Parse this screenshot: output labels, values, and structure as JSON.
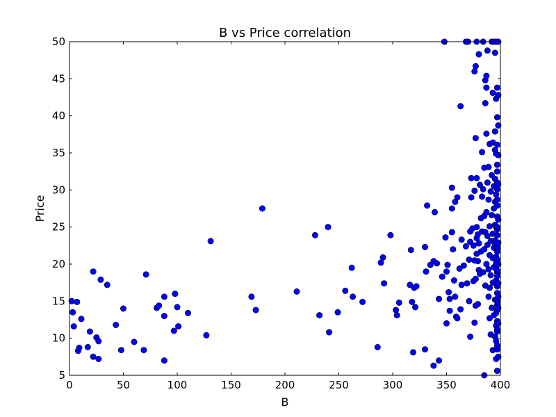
{
  "chart_data": {
    "type": "scatter",
    "title": "B vs Price correlation",
    "xlabel": "B",
    "ylabel": "Price",
    "xlim": [
      0,
      400
    ],
    "ylim": [
      5,
      50
    ],
    "xticks": [
      0,
      50,
      100,
      150,
      200,
      250,
      300,
      350,
      400
    ],
    "yticks": [
      5,
      10,
      15,
      20,
      25,
      30,
      35,
      40,
      45,
      50
    ],
    "grid": false,
    "marker_color": "#0000ff",
    "marker_edge": "#000000",
    "points": [
      [
        2,
        15.0
      ],
      [
        3,
        13.5
      ],
      [
        4,
        11.6
      ],
      [
        7,
        14.9
      ],
      [
        8,
        8.3
      ],
      [
        9,
        8.7
      ],
      [
        11,
        12.6
      ],
      [
        17,
        8.8
      ],
      [
        19,
        10.9
      ],
      [
        22,
        7.5
      ],
      [
        22,
        19.0
      ],
      [
        25,
        10.1
      ],
      [
        27,
        9.6
      ],
      [
        27,
        7.2
      ],
      [
        29,
        17.9
      ],
      [
        35,
        17.2
      ],
      [
        43,
        11.8
      ],
      [
        48,
        8.4
      ],
      [
        50,
        14.0
      ],
      [
        60,
        9.5
      ],
      [
        69,
        8.4
      ],
      [
        71,
        18.6
      ],
      [
        81,
        14.1
      ],
      [
        83,
        14.4
      ],
      [
        88,
        15.6
      ],
      [
        88,
        13.0
      ],
      [
        88,
        7.0
      ],
      [
        97,
        11.0
      ],
      [
        98,
        16.0
      ],
      [
        100,
        14.2
      ],
      [
        101,
        11.6
      ],
      [
        110,
        13.4
      ],
      [
        127,
        10.4
      ],
      [
        131,
        23.1
      ],
      [
        169,
        15.6
      ],
      [
        173,
        13.8
      ],
      [
        179,
        27.5
      ],
      [
        211,
        16.3
      ],
      [
        228,
        23.9
      ],
      [
        232,
        13.1
      ],
      [
        240,
        25.0
      ],
      [
        241,
        10.8
      ],
      [
        249,
        13.5
      ],
      [
        256,
        16.4
      ],
      [
        262,
        19.5
      ],
      [
        263,
        15.6
      ],
      [
        272,
        14.9
      ],
      [
        286,
        8.8
      ],
      [
        289,
        20.2
      ],
      [
        291,
        20.9
      ],
      [
        292,
        17.4
      ],
      [
        298,
        23.9
      ],
      [
        303,
        13.8
      ],
      [
        304,
        13.1
      ],
      [
        306,
        14.8
      ],
      [
        316,
        17.2
      ],
      [
        317,
        21.9
      ],
      [
        318,
        14.9
      ],
      [
        319,
        8.1
      ],
      [
        320,
        16.8
      ],
      [
        321,
        14.2
      ],
      [
        322,
        17.0
      ],
      [
        330,
        22.3
      ],
      [
        330,
        8.5
      ],
      [
        331,
        19.0
      ],
      [
        332,
        27.9
      ],
      [
        335,
        19.9
      ],
      [
        338,
        20.4
      ],
      [
        338,
        6.3
      ],
      [
        339,
        27.0
      ],
      [
        341,
        20.1
      ],
      [
        343,
        15.3
      ],
      [
        343,
        7.0
      ],
      [
        346,
        18.3
      ],
      [
        348,
        50.0
      ],
      [
        349,
        23.6
      ],
      [
        350,
        19.0
      ],
      [
        350,
        12.0
      ],
      [
        351,
        19.9
      ],
      [
        352,
        16.2
      ],
      [
        353,
        15.3
      ],
      [
        353,
        13.7
      ],
      [
        355,
        24.3
      ],
      [
        355,
        30.3
      ],
      [
        355,
        27.5
      ],
      [
        356,
        22.0
      ],
      [
        357,
        17.8
      ],
      [
        358,
        15.6
      ],
      [
        358,
        28.4
      ],
      [
        359,
        12.9
      ],
      [
        360,
        29.0
      ],
      [
        360,
        12.7
      ],
      [
        362,
        19.4
      ],
      [
        363,
        13.9
      ],
      [
        363,
        41.3
      ],
      [
        364,
        17.2
      ],
      [
        364,
        23.3
      ],
      [
        366,
        19.8
      ],
      [
        368,
        22.4
      ],
      [
        368,
        50.0
      ],
      [
        369,
        17.4
      ],
      [
        370,
        50.0
      ],
      [
        371,
        20.6
      ],
      [
        371,
        15.0
      ],
      [
        372,
        24.4
      ],
      [
        372,
        23.0
      ],
      [
        372,
        10.2
      ],
      [
        373,
        31.6
      ],
      [
        373,
        29.0
      ],
      [
        374,
        24.8
      ],
      [
        375,
        22.5
      ],
      [
        375,
        17.7
      ],
      [
        376,
        20.5
      ],
      [
        376,
        29.9
      ],
      [
        376,
        46.0
      ],
      [
        376,
        12.1
      ],
      [
        377,
        14.4
      ],
      [
        377,
        18.0
      ],
      [
        377,
        46.7
      ],
      [
        377,
        37.0
      ],
      [
        378,
        23.5
      ],
      [
        378,
        25.0
      ],
      [
        378,
        21.4
      ],
      [
        378,
        50.0
      ],
      [
        378,
        31.6
      ],
      [
        379,
        20.4
      ],
      [
        379,
        24.0
      ],
      [
        379,
        14.6
      ],
      [
        380,
        48.3
      ],
      [
        380,
        19.2
      ],
      [
        380,
        22.8
      ],
      [
        381,
        18.7
      ],
      [
        381,
        30.7
      ],
      [
        382,
        26.2
      ],
      [
        382,
        21.7
      ],
      [
        383,
        29.1
      ],
      [
        383,
        24.4
      ],
      [
        383,
        35.1
      ],
      [
        384,
        18.9
      ],
      [
        384,
        30.1
      ],
      [
        384,
        50.0
      ],
      [
        385,
        22.0
      ],
      [
        385,
        26.5
      ],
      [
        385,
        33.0
      ],
      [
        385,
        5.0
      ],
      [
        386,
        44.8
      ],
      [
        386,
        17.1
      ],
      [
        386,
        41.7
      ],
      [
        386,
        24.3
      ],
      [
        387,
        20.0
      ],
      [
        387,
        27.0
      ],
      [
        387,
        43.8
      ],
      [
        387,
        37.6
      ],
      [
        387,
        45.4
      ],
      [
        388,
        31.0
      ],
      [
        388,
        22.6
      ],
      [
        388,
        48.8
      ],
      [
        388,
        23.8
      ],
      [
        389,
        15.6
      ],
      [
        389,
        19.3
      ],
      [
        389,
        33.1
      ],
      [
        389,
        28.7
      ],
      [
        390,
        36.2
      ],
      [
        390,
        21.2
      ],
      [
        390,
        16.8
      ],
      [
        390,
        25.1
      ],
      [
        390,
        12.7
      ],
      [
        391,
        29.8
      ],
      [
        391,
        18.5
      ],
      [
        391,
        10.5
      ],
      [
        391,
        23.1
      ],
      [
        392,
        50.0
      ],
      [
        392,
        32.0
      ],
      [
        392,
        14.1
      ],
      [
        392,
        26.6
      ],
      [
        393,
        36.4
      ],
      [
        393,
        20.8
      ],
      [
        393,
        24.1
      ],
      [
        393,
        43.1
      ],
      [
        393,
        17.5
      ],
      [
        393,
        8.4
      ],
      [
        394,
        22.2
      ],
      [
        394,
        50.0
      ],
      [
        394,
        27.5
      ],
      [
        394,
        30.5
      ],
      [
        394,
        19.6
      ],
      [
        394,
        13.1
      ],
      [
        395,
        35.4
      ],
      [
        395,
        23.2
      ],
      [
        395,
        10.2
      ],
      [
        395,
        15.2
      ],
      [
        395,
        48.5
      ],
      [
        395,
        28.4
      ],
      [
        395,
        25.3
      ],
      [
        395,
        31.5
      ],
      [
        395,
        22.8
      ],
      [
        395,
        37.9
      ],
      [
        396,
        29.4
      ],
      [
        396,
        17.8
      ],
      [
        396,
        21.0
      ],
      [
        396,
        34.9
      ],
      [
        396,
        13.4
      ],
      [
        396,
        7.2
      ],
      [
        396,
        42.3
      ],
      [
        396,
        11.7
      ],
      [
        396,
        25.0
      ],
      [
        396,
        19.4
      ],
      [
        396,
        20.1
      ],
      [
        396,
        50.0
      ],
      [
        396,
        9.6
      ],
      [
        397,
        43.8
      ],
      [
        397,
        33.4
      ],
      [
        397,
        39.8
      ],
      [
        397,
        26.4
      ],
      [
        397,
        14.5
      ],
      [
        397,
        18.9
      ],
      [
        397,
        5.6
      ],
      [
        397,
        22.0
      ],
      [
        397,
        16.1
      ],
      [
        397,
        12.3
      ],
      [
        397,
        30.1
      ],
      [
        397,
        24.7
      ],
      [
        397,
        8.5
      ],
      [
        397,
        36.1
      ],
      [
        397,
        20.6
      ],
      [
        397,
        27.9
      ],
      [
        397,
        10.9
      ],
      [
        397,
        21.7
      ],
      [
        397,
        15.0
      ],
      [
        397,
        31.0
      ],
      [
        397,
        23.9
      ],
      [
        397,
        19.1
      ],
      [
        397,
        17.0
      ],
      [
        397,
        13.8
      ],
      [
        397,
        28.7
      ],
      [
        397,
        11.2
      ],
      [
        397,
        25.0
      ],
      [
        397,
        32.5
      ],
      [
        397,
        22.4
      ],
      [
        397,
        18.4
      ],
      [
        397,
        9.0
      ],
      [
        398,
        42.8
      ],
      [
        398,
        34.7
      ],
      [
        398,
        38.7
      ],
      [
        398,
        7.5
      ],
      [
        398,
        20.0
      ],
      [
        398,
        26.0
      ],
      [
        398,
        15.6
      ],
      [
        398,
        50.0
      ],
      [
        398,
        22.9
      ],
      [
        398,
        12.0
      ],
      [
        398,
        30.8
      ],
      [
        398,
        17.4
      ],
      [
        398,
        14.1
      ]
    ]
  }
}
